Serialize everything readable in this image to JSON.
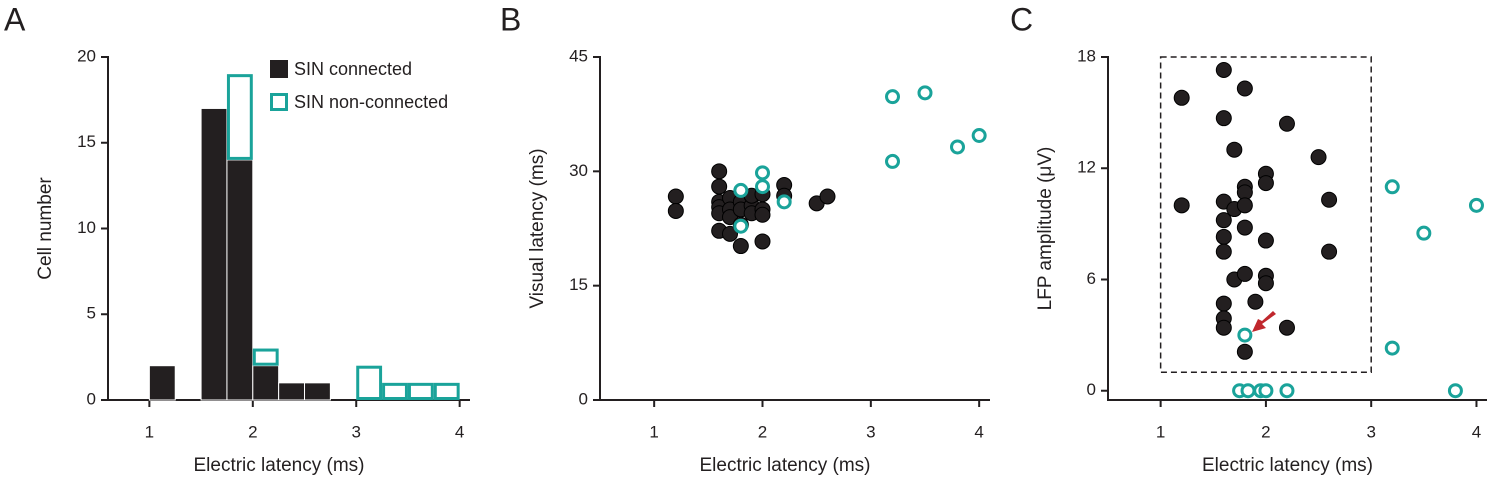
{
  "chart_data": [
    {
      "type": "histogram",
      "panel_label": "A",
      "x_label": "Electric latency (ms)",
      "y_label": "Cell number",
      "bins": [
        1.0,
        1.25,
        1.5,
        1.75,
        2.0,
        2.25,
        2.5,
        2.75,
        3.0,
        3.25,
        3.5,
        3.75,
        4.0
      ],
      "series": [
        {
          "name": "SIN connected",
          "color": "#231f20",
          "hollow": false,
          "values": [
            2,
            0,
            17,
            14,
            2,
            1,
            1,
            0,
            0,
            0,
            0,
            0
          ]
        },
        {
          "name": "SIN non-connected",
          "color": "#1aa39a",
          "hollow": true,
          "values": [
            0,
            0,
            0,
            5,
            1,
            0,
            0,
            0,
            2,
            1,
            1,
            1
          ]
        }
      ],
      "stacked": true,
      "legend": "upper right",
      "xlim": [
        0.6,
        4.1
      ],
      "xticks": [
        1,
        2,
        3,
        4
      ],
      "ylim": [
        0,
        20
      ],
      "yticks": [
        0,
        5,
        10,
        15,
        20
      ]
    },
    {
      "type": "scatter",
      "panel_label": "B",
      "x_label": "Electric latency (ms)",
      "y_label": "Visual latency (ms)",
      "series": [
        {
          "name": "SIN connected",
          "color": "#231f20",
          "hollow": false,
          "x": [
            1.2,
            1.2,
            1.6,
            1.6,
            1.6,
            1.6,
            1.6,
            1.6,
            1.7,
            1.7,
            1.7,
            1.7,
            1.8,
            1.8,
            1.8,
            1.8,
            1.9,
            1.9,
            1.9,
            2.0,
            2.0,
            2.0,
            2.0,
            2.2,
            2.2,
            2.5,
            2.6
          ],
          "values": [
            26.7,
            24.8,
            30.0,
            28.0,
            26.0,
            25.3,
            24.5,
            22.2,
            26.5,
            25.0,
            24.0,
            21.8,
            26.0,
            25.0,
            23.0,
            20.2,
            25.5,
            24.5,
            26.8,
            27.0,
            25.0,
            24.3,
            20.8,
            28.2,
            26.8,
            25.8,
            26.7
          ]
        },
        {
          "name": "SIN non-connected",
          "color": "#1aa39a",
          "hollow": true,
          "x": [
            1.8,
            1.8,
            2.0,
            2.0,
            2.2,
            3.2,
            3.2,
            3.5,
            3.8,
            4.0
          ],
          "values": [
            27.5,
            22.8,
            29.8,
            28.0,
            26.0,
            39.8,
            31.3,
            40.3,
            33.2,
            34.7
          ]
        }
      ],
      "xlim": [
        0.5,
        4.1
      ],
      "xticks": [
        1,
        2,
        3,
        4
      ],
      "ylim": [
        0,
        45
      ],
      "yticks": [
        0,
        15,
        30,
        45
      ]
    },
    {
      "type": "scatter",
      "panel_label": "C",
      "x_label": "Electric latency (ms)",
      "y_label": "LFP amplitude (μV)",
      "series": [
        {
          "name": "SIN connected",
          "color": "#231f20",
          "hollow": false,
          "x": [
            1.2,
            1.2,
            1.6,
            1.6,
            1.6,
            1.6,
            1.6,
            1.6,
            1.6,
            1.6,
            1.6,
            1.7,
            1.7,
            1.7,
            1.8,
            1.8,
            1.8,
            1.8,
            1.8,
            1.8,
            1.8,
            1.9,
            2.0,
            2.0,
            2.0,
            2.0,
            2.0,
            2.2,
            2.2,
            2.5,
            2.6,
            2.6
          ],
          "values": [
            15.8,
            10.0,
            17.3,
            14.7,
            10.2,
            9.2,
            8.3,
            7.5,
            4.7,
            3.9,
            3.4,
            13.0,
            9.8,
            6.0,
            16.3,
            11.0,
            10.7,
            10.0,
            8.8,
            6.3,
            2.1,
            4.8,
            11.7,
            11.2,
            8.1,
            6.2,
            5.8,
            14.4,
            3.4,
            12.6,
            10.3,
            7.5
          ]
        },
        {
          "name": "SIN non-connected",
          "color": "#1aa39a",
          "hollow": true,
          "x": [
            1.8,
            1.75,
            1.83,
            1.95,
            2.0,
            2.2,
            3.2,
            3.2,
            3.5,
            3.8,
            4.0
          ],
          "values": [
            3.0,
            0,
            0,
            0,
            0,
            0,
            11.0,
            2.3,
            8.5,
            0,
            10.0
          ]
        }
      ],
      "region": {
        "x": [
          1,
          3
        ],
        "y": [
          1,
          18
        ]
      },
      "xlim": [
        0.5,
        4.1
      ],
      "xticks": [
        1,
        2,
        3,
        4
      ],
      "ylim": [
        -0.5,
        18
      ],
      "yticks": [
        0,
        6,
        12,
        18
      ]
    }
  ]
}
